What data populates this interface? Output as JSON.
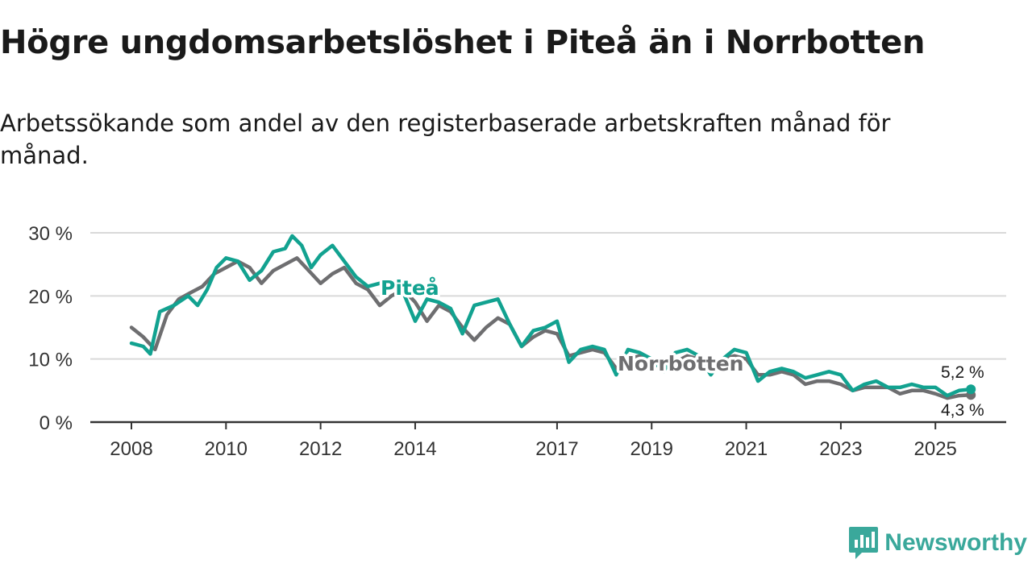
{
  "title": "Högre ungdomsarbetslöshet i Piteå än i Norrbotten",
  "subtitle": "Arbetssökande som andel av den registerbaserade arbetskraften månad för månad.",
  "brand": {
    "name": "Newsworthy",
    "icon": "newsworthy-logo-icon",
    "color": "#3aa89b"
  },
  "chart_data": {
    "type": "line",
    "title": "Högre ungdomsarbetslöshet i Piteå än i Norrbotten",
    "ylim": [
      0,
      30
    ],
    "xlim": [
      2008,
      2025.9
    ],
    "yticks": [
      0,
      10,
      20,
      30
    ],
    "ytick_labels": [
      "0 %",
      "10 %",
      "20 %",
      "30 %"
    ],
    "xticks": [
      2008,
      2010,
      2012,
      2014,
      2017,
      2019,
      2021,
      2023,
      2025
    ],
    "xtick_labels": [
      "2008",
      "2010",
      "2012",
      "2014",
      "2017",
      "2019",
      "2021",
      "2023",
      "2025"
    ],
    "grid": true,
    "series": [
      {
        "name": "Norrbotten",
        "label": "Norrbotten",
        "color": "#6e6e70",
        "end_label": "4,3 %",
        "points": [
          [
            2008.0,
            15.0
          ],
          [
            2008.25,
            13.5
          ],
          [
            2008.5,
            11.5
          ],
          [
            2008.75,
            17.0
          ],
          [
            2009.0,
            19.5
          ],
          [
            2009.25,
            20.5
          ],
          [
            2009.5,
            21.5
          ],
          [
            2009.75,
            23.5
          ],
          [
            2010.0,
            24.5
          ],
          [
            2010.25,
            25.5
          ],
          [
            2010.5,
            24.5
          ],
          [
            2010.75,
            22.0
          ],
          [
            2011.0,
            24.0
          ],
          [
            2011.25,
            25.0
          ],
          [
            2011.5,
            26.0
          ],
          [
            2011.75,
            24.0
          ],
          [
            2012.0,
            22.0
          ],
          [
            2012.25,
            23.5
          ],
          [
            2012.5,
            24.5
          ],
          [
            2012.75,
            22.0
          ],
          [
            2013.0,
            21.0
          ],
          [
            2013.25,
            18.5
          ],
          [
            2013.5,
            20.0
          ],
          [
            2013.75,
            21.0
          ],
          [
            2014.0,
            19.0
          ],
          [
            2014.25,
            16.0
          ],
          [
            2014.5,
            18.5
          ],
          [
            2014.75,
            17.5
          ],
          [
            2015.0,
            15.0
          ],
          [
            2015.25,
            13.0
          ],
          [
            2015.5,
            15.0
          ],
          [
            2015.75,
            16.5
          ],
          [
            2016.0,
            15.5
          ],
          [
            2016.25,
            12.0
          ],
          [
            2016.5,
            13.5
          ],
          [
            2016.75,
            14.5
          ],
          [
            2017.0,
            14.0
          ],
          [
            2017.25,
            10.5
          ],
          [
            2017.5,
            11.0
          ],
          [
            2017.75,
            11.5
          ],
          [
            2018.0,
            11.0
          ],
          [
            2018.25,
            8.5
          ],
          [
            2018.5,
            10.0
          ],
          [
            2018.75,
            10.5
          ],
          [
            2019.0,
            9.5
          ],
          [
            2019.25,
            8.5
          ],
          [
            2019.5,
            9.5
          ],
          [
            2019.75,
            10.5
          ],
          [
            2020.0,
            10.0
          ],
          [
            2020.25,
            9.5
          ],
          [
            2020.5,
            10.0
          ],
          [
            2020.75,
            10.5
          ],
          [
            2021.0,
            10.0
          ],
          [
            2021.25,
            7.5
          ],
          [
            2021.5,
            7.5
          ],
          [
            2021.75,
            8.0
          ],
          [
            2022.0,
            7.5
          ],
          [
            2022.25,
            6.0
          ],
          [
            2022.5,
            6.5
          ],
          [
            2022.75,
            6.5
          ],
          [
            2023.0,
            6.0
          ],
          [
            2023.25,
            5.0
          ],
          [
            2023.5,
            5.5
          ],
          [
            2023.75,
            5.5
          ],
          [
            2024.0,
            5.5
          ],
          [
            2024.25,
            4.5
          ],
          [
            2024.5,
            5.0
          ],
          [
            2024.75,
            5.0
          ],
          [
            2025.0,
            4.5
          ],
          [
            2025.25,
            3.8
          ],
          [
            2025.5,
            4.2
          ],
          [
            2025.75,
            4.3
          ]
        ]
      },
      {
        "name": "Piteå",
        "label": "Piteå",
        "color": "#12a290",
        "end_label": "5,2 %",
        "points": [
          [
            2008.0,
            12.5
          ],
          [
            2008.25,
            12.0
          ],
          [
            2008.4,
            10.8
          ],
          [
            2008.6,
            17.5
          ],
          [
            2008.9,
            18.5
          ],
          [
            2009.2,
            20.0
          ],
          [
            2009.4,
            18.5
          ],
          [
            2009.6,
            21.0
          ],
          [
            2009.8,
            24.5
          ],
          [
            2010.0,
            26.0
          ],
          [
            2010.25,
            25.5
          ],
          [
            2010.5,
            22.5
          ],
          [
            2010.75,
            24.0
          ],
          [
            2011.0,
            27.0
          ],
          [
            2011.25,
            27.5
          ],
          [
            2011.4,
            29.5
          ],
          [
            2011.6,
            28.0
          ],
          [
            2011.8,
            24.5
          ],
          [
            2012.0,
            26.5
          ],
          [
            2012.25,
            28.0
          ],
          [
            2012.5,
            25.5
          ],
          [
            2012.75,
            23.0
          ],
          [
            2013.0,
            21.5
          ],
          [
            2013.25,
            22.0
          ],
          [
            2013.5,
            22.5
          ],
          [
            2013.75,
            20.5
          ],
          [
            2014.0,
            16.0
          ],
          [
            2014.25,
            19.5
          ],
          [
            2014.5,
            19.0
          ],
          [
            2014.75,
            18.0
          ],
          [
            2015.0,
            14.0
          ],
          [
            2015.25,
            18.5
          ],
          [
            2015.5,
            19.0
          ],
          [
            2015.75,
            19.5
          ],
          [
            2016.0,
            15.5
          ],
          [
            2016.25,
            12.0
          ],
          [
            2016.5,
            14.5
          ],
          [
            2016.75,
            15.0
          ],
          [
            2017.0,
            16.0
          ],
          [
            2017.25,
            9.5
          ],
          [
            2017.5,
            11.5
          ],
          [
            2017.75,
            12.0
          ],
          [
            2018.0,
            11.5
          ],
          [
            2018.25,
            7.5
          ],
          [
            2018.5,
            11.5
          ],
          [
            2018.75,
            11.0
          ],
          [
            2019.0,
            10.0
          ],
          [
            2019.25,
            8.0
          ],
          [
            2019.5,
            11.0
          ],
          [
            2019.75,
            11.5
          ],
          [
            2020.0,
            10.5
          ],
          [
            2020.25,
            7.5
          ],
          [
            2020.5,
            10.0
          ],
          [
            2020.75,
            11.5
          ],
          [
            2021.0,
            11.0
          ],
          [
            2021.25,
            6.5
          ],
          [
            2021.5,
            8.0
          ],
          [
            2021.75,
            8.5
          ],
          [
            2022.0,
            8.0
          ],
          [
            2022.25,
            7.0
          ],
          [
            2022.5,
            7.5
          ],
          [
            2022.75,
            8.0
          ],
          [
            2023.0,
            7.5
          ],
          [
            2023.25,
            5.0
          ],
          [
            2023.5,
            6.0
          ],
          [
            2023.75,
            6.5
          ],
          [
            2024.0,
            5.5
          ],
          [
            2024.25,
            5.5
          ],
          [
            2024.5,
            6.0
          ],
          [
            2024.75,
            5.5
          ],
          [
            2025.0,
            5.5
          ],
          [
            2025.25,
            4.2
          ],
          [
            2025.5,
            5.0
          ],
          [
            2025.75,
            5.2
          ]
        ]
      }
    ]
  }
}
